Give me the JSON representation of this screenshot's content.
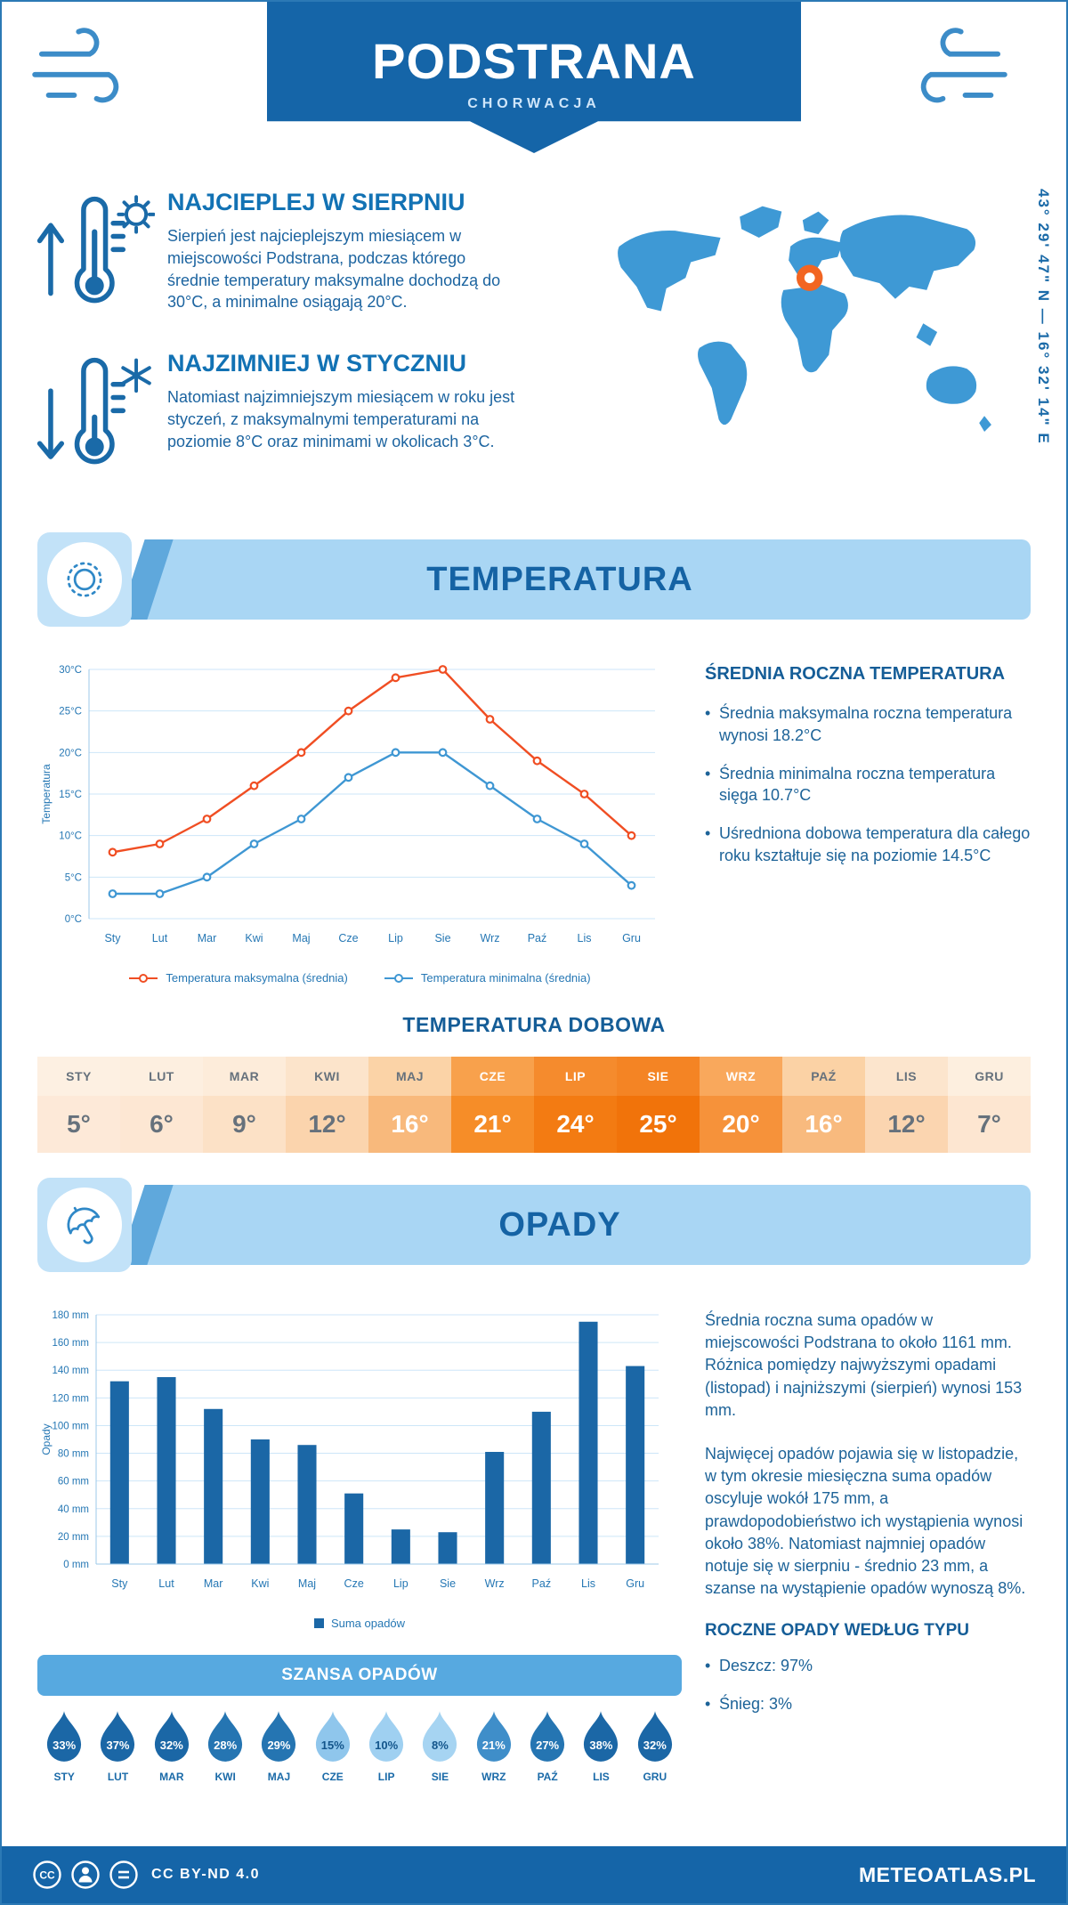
{
  "page": {
    "title": "PODSTRANA",
    "subtitle": "CHORWACJA",
    "coordinates": "43° 29' 47\" N — 16° 32' 14\" E"
  },
  "highlights": [
    {
      "title": "NAJCIEPLEJ W SIERPNIU",
      "text": "Sierpień jest najcieplejszym miesiącem w miejscowości Podstrana, podczas którego średnie temperatury maksymalne dochodzą do 30°C, a minimalne osiągają 20°C."
    },
    {
      "title": "NAJZIMNIEJ W STYCZNIU",
      "text": "Natomiast najzimniejszym miesiącem w roku jest styczeń, z maksymalnymi temperaturami na poziomie 8°C oraz minimami w okolicach 3°C."
    }
  ],
  "temperature_section": {
    "band_title": "TEMPERATURA",
    "side_heading": "ŚREDNIA ROCZNA TEMPERATURA",
    "bullets": [
      "Średnia maksymalna roczna temperatura wynosi 18.2°C",
      "Średnia minimalna roczna temperatura sięga 10.7°C",
      "Uśredniona dobowa temperatura dla całego roku kształtuje się na poziomie 14.5°C"
    ],
    "daily_title": "TEMPERATURA DOBOWA"
  },
  "chart_data": [
    {
      "type": "line",
      "x": [
        "Sty",
        "Lut",
        "Mar",
        "Kwi",
        "Maj",
        "Cze",
        "Lip",
        "Sie",
        "Wrz",
        "Paź",
        "Lis",
        "Gru"
      ],
      "ylabel": "Temperatura",
      "ylim": [
        0,
        30
      ],
      "ytick": 5,
      "yunit": "°C",
      "grid": true,
      "legend_position": "bottom",
      "series": [
        {
          "name": "Temperatura maksymalna (średnia)",
          "color": "#f04e23",
          "values": [
            8,
            9,
            12,
            16,
            20,
            25,
            29,
            30,
            24,
            19,
            15,
            10
          ]
        },
        {
          "name": "Temperatura minimalna (średnia)",
          "color": "#3f97d3",
          "values": [
            3,
            3,
            5,
            9,
            12,
            17,
            20,
            20,
            16,
            12,
            9,
            4
          ]
        }
      ]
    },
    {
      "type": "bar",
      "categories": [
        "Sty",
        "Lut",
        "Mar",
        "Kwi",
        "Maj",
        "Cze",
        "Lip",
        "Sie",
        "Wrz",
        "Paź",
        "Lis",
        "Gru"
      ],
      "values": [
        132,
        135,
        112,
        90,
        86,
        51,
        25,
        23,
        81,
        110,
        175,
        143
      ],
      "ylabel": "Opady",
      "ylim": [
        0,
        180
      ],
      "ytick": 20,
      "yunit": " mm",
      "grid": true,
      "bar_color": "#1b67a6",
      "legend": "Suma opadów"
    }
  ],
  "daily_table": {
    "columns": [
      {
        "month": "STY",
        "value": "5°",
        "header_bg": "#fdf0e2",
        "cell_bg": "#fde9d8",
        "header_text": "#66717c",
        "value_text": "#66717c"
      },
      {
        "month": "LUT",
        "value": "6°",
        "header_bg": "#fdefe0",
        "cell_bg": "#fde7d3",
        "header_text": "#66717c",
        "value_text": "#66717c"
      },
      {
        "month": "MAR",
        "value": "9°",
        "header_bg": "#fdecda",
        "cell_bg": "#fce1c6",
        "header_text": "#66717c",
        "value_text": "#66717c"
      },
      {
        "month": "KWI",
        "value": "12°",
        "header_bg": "#fce4cb",
        "cell_bg": "#fbd4ad",
        "header_text": "#66717c",
        "value_text": "#66717c"
      },
      {
        "month": "MAJ",
        "value": "16°",
        "header_bg": "#fbd3a7",
        "cell_bg": "#f8b97c",
        "header_text": "#66717c",
        "value_text": "#ffffff"
      },
      {
        "month": "CZE",
        "value": "21°",
        "header_bg": "#f8a14c",
        "cell_bg": "#f68d28",
        "header_text": "#ffffff",
        "value_text": "#ffffff"
      },
      {
        "month": "LIP",
        "value": "24°",
        "header_bg": "#f58b2d",
        "cell_bg": "#f37b12",
        "header_text": "#ffffff",
        "value_text": "#ffffff"
      },
      {
        "month": "SIE",
        "value": "25°",
        "header_bg": "#f48424",
        "cell_bg": "#f1730a",
        "header_text": "#ffffff",
        "value_text": "#ffffff"
      },
      {
        "month": "WRZ",
        "value": "20°",
        "header_bg": "#f9a85c",
        "cell_bg": "#f6923a",
        "header_text": "#ffffff",
        "value_text": "#ffffff"
      },
      {
        "month": "PAŹ",
        "value": "16°",
        "header_bg": "#fbd2a5",
        "cell_bg": "#f8ba7e",
        "header_text": "#66717c",
        "value_text": "#ffffff"
      },
      {
        "month": "LIS",
        "value": "12°",
        "header_bg": "#fce5cd",
        "cell_bg": "#fbd5b0",
        "header_text": "#66717c",
        "value_text": "#66717c"
      },
      {
        "month": "GRU",
        "value": "7°",
        "header_bg": "#fdefdf",
        "cell_bg": "#fde6d1",
        "header_text": "#66717c",
        "value_text": "#66717c"
      }
    ]
  },
  "precipitation_section": {
    "band_title": "OPADY",
    "paragraphs": [
      "Średnia roczna suma opadów w miejscowości Podstrana to około 1161 mm. Różnica pomiędzy najwyższymi opadami (listopad) i najniższymi (sierpień) wynosi 153 mm.",
      "Najwięcej opadów pojawia się w listopadzie, w tym okresie miesięczna suma opadów oscyluje wokół 175 mm, a prawdopodobieństwo ich wystąpienia wynosi około 38%. Natomiast najmniej opadów notuje się w sierpniu - średnio 23 mm, a szanse na wystąpienie opadów wynoszą 8%."
    ],
    "chance": {
      "title": "SZANSA OPADÓW",
      "items": [
        {
          "month": "STY",
          "value": "33%",
          "fill": "#1b67a6",
          "text": "#ffffff"
        },
        {
          "month": "LUT",
          "value": "37%",
          "fill": "#1b67a6",
          "text": "#ffffff"
        },
        {
          "month": "MAR",
          "value": "32%",
          "fill": "#1b67a6",
          "text": "#ffffff"
        },
        {
          "month": "KWI",
          "value": "28%",
          "fill": "#2575b2",
          "text": "#ffffff"
        },
        {
          "month": "MAJ",
          "value": "29%",
          "fill": "#2575b2",
          "text": "#ffffff"
        },
        {
          "month": "CZE",
          "value": "15%",
          "fill": "#8fc6ec",
          "text": "#14568c"
        },
        {
          "month": "LIP",
          "value": "10%",
          "fill": "#9fd0f1",
          "text": "#14568c"
        },
        {
          "month": "SIE",
          "value": "8%",
          "fill": "#a6d4f2",
          "text": "#14568c"
        },
        {
          "month": "WRZ",
          "value": "21%",
          "fill": "#3f8ec9",
          "text": "#ffffff"
        },
        {
          "month": "PAŹ",
          "value": "27%",
          "fill": "#2575b2",
          "text": "#ffffff"
        },
        {
          "month": "LIS",
          "value": "38%",
          "fill": "#1b67a6",
          "text": "#ffffff"
        },
        {
          "month": "GRU",
          "value": "32%",
          "fill": "#1b67a6",
          "text": "#ffffff"
        }
      ]
    },
    "type_heading": "ROCZNE OPADY WEDŁUG TYPU",
    "type_bullets": [
      "Deszcz: 97%",
      "Śnieg: 3%"
    ]
  },
  "footer": {
    "license": "CC BY-ND 4.0",
    "brand": "METEOATLAS.PL"
  }
}
